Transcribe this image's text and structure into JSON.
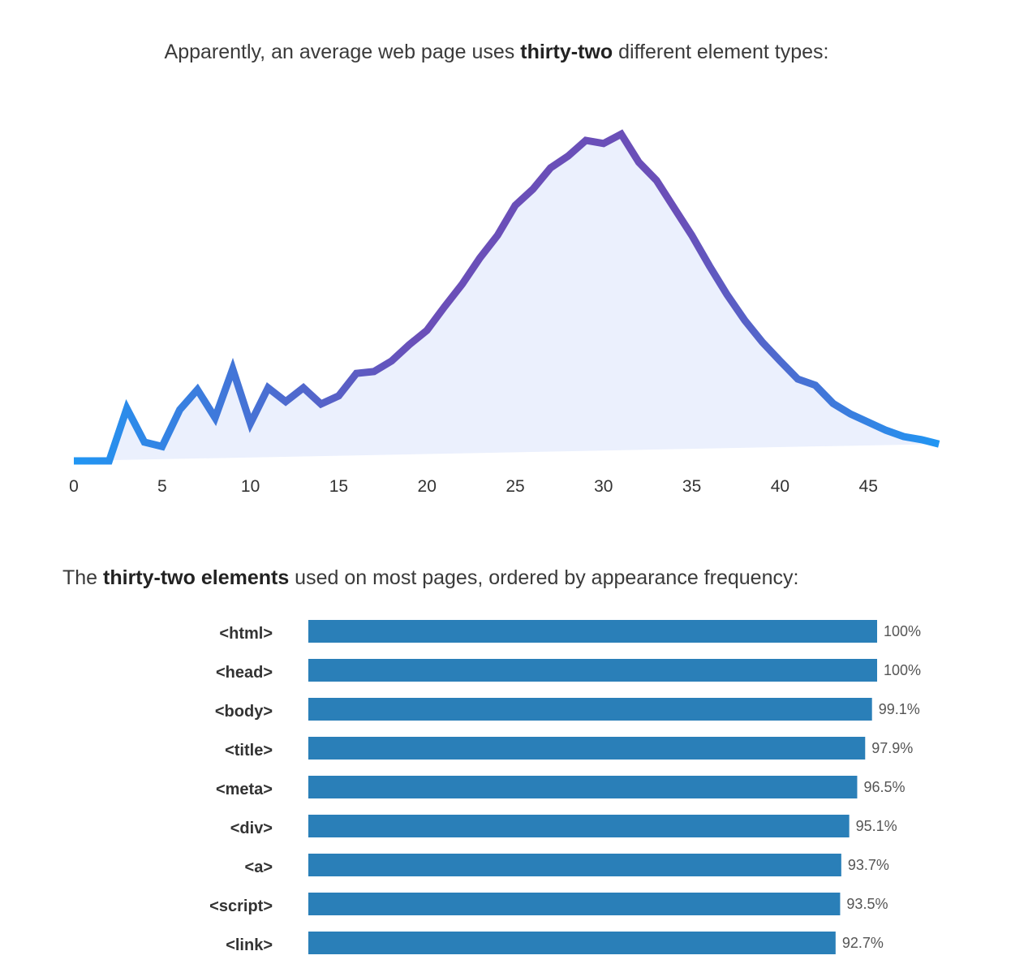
{
  "heading1": {
    "pre": "Apparently, an average web page uses ",
    "bold": "thirty-two",
    "post": " different element types:"
  },
  "heading2": {
    "pre": "The ",
    "bold": "thirty-two elements",
    "post": " used on most pages, ordered by appearance frequency:"
  },
  "colors": {
    "line_start": "#2196f3",
    "line_peak": "#6a4fb8",
    "fill": "#ebf0fd",
    "bar": "#2a7fb8"
  },
  "chart_data": [
    {
      "type": "area",
      "title": "",
      "xlabel": "",
      "ylabel": "",
      "x_ticks": [
        0,
        5,
        10,
        15,
        20,
        25,
        30,
        35,
        40,
        45
      ],
      "xlim": [
        0,
        49
      ],
      "ylim": [
        0,
        5.3
      ],
      "grid": false,
      "x": [
        0,
        1,
        2,
        3,
        4,
        5,
        6,
        7,
        8,
        9,
        10,
        11,
        12,
        13,
        14,
        15,
        16,
        17,
        18,
        19,
        20,
        21,
        22,
        23,
        24,
        25,
        26,
        27,
        28,
        29,
        30,
        31,
        32,
        33,
        34,
        35,
        36,
        37,
        38,
        39,
        40,
        41,
        42,
        43,
        44,
        45,
        46,
        47,
        48,
        49
      ],
      "y": [
        0,
        0,
        0,
        0.84,
        0.3,
        0.23,
        0.82,
        1.14,
        0.69,
        1.47,
        0.6,
        1.17,
        0.95,
        1.17,
        0.91,
        1.04,
        1.4,
        1.43,
        1.6,
        1.86,
        2.09,
        2.47,
        2.83,
        3.25,
        3.61,
        4.09,
        4.35,
        4.69,
        4.88,
        5.13,
        5.08,
        5.23,
        4.78,
        4.49,
        4.05,
        3.61,
        3.12,
        2.66,
        2.25,
        1.9,
        1.6,
        1.31,
        1.21,
        0.92,
        0.75,
        0.62,
        0.49,
        0.39,
        0.34,
        0.27
      ]
    },
    {
      "type": "bar",
      "orientation": "horizontal",
      "title": "",
      "xlim": [
        0,
        100
      ],
      "categories": [
        "<html>",
        "<head>",
        "<body>",
        "<title>",
        "<meta>",
        "<div>",
        "<a>",
        "<script>",
        "<link>"
      ],
      "values": [
        100,
        100,
        99.1,
        97.9,
        96.5,
        95.1,
        93.7,
        93.5,
        92.7
      ],
      "labels": [
        "100%",
        "100%",
        "99.1%",
        "97.9%",
        "96.5%",
        "95.1%",
        "93.7%",
        "93.5%",
        "92.7%"
      ]
    }
  ]
}
